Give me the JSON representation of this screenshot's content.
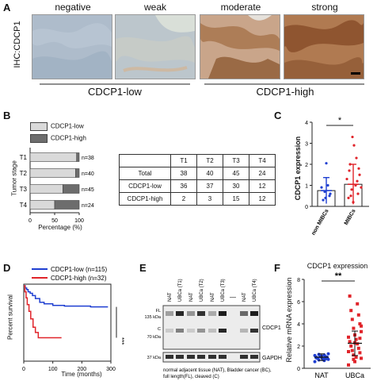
{
  "panel_a": {
    "letter": "A",
    "columns": [
      "negative",
      "weak",
      "moderate",
      "strong"
    ],
    "ylabel": "IHC:CDCP1",
    "groups": [
      "CDCP1-low",
      "CDCP1-high"
    ],
    "colors": {
      "negative": "#a9b9c9",
      "weak": "#b9c4cb",
      "moderate": "#b88d6a",
      "strong": "#a5683e"
    }
  },
  "panel_b": {
    "letter": "B",
    "legend": [
      "CDCP1-low",
      "CDCP1-high"
    ],
    "ylabel": "Tumor stage",
    "xlabel": "Percentage (%)",
    "table": {
      "headers": [
        "",
        "T1",
        "T2",
        "T3",
        "T4"
      ],
      "rows": [
        [
          "Total",
          "38",
          "40",
          "45",
          "24"
        ],
        [
          "CDCP1-low",
          "36",
          "37",
          "30",
          "12"
        ],
        [
          "CDCP1-high",
          "2",
          "3",
          "15",
          "12"
        ]
      ]
    }
  },
  "panel_c": {
    "letter": "C",
    "ylabel": "CDCP1 expression",
    "significance": "*",
    "xticks": [
      "non MIBCs",
      "MIBCs"
    ]
  },
  "panel_d": {
    "letter": "D",
    "legend": [
      "CDCP1-low (n=115)",
      "CDCP1-high (n=32)"
    ],
    "ylabel": "Percent survival",
    "xlabel": "Time (months)",
    "significance": "***"
  },
  "panel_e": {
    "letter": "E",
    "lane_labels": [
      "NAT",
      "UBCa (T1)",
      "NAT",
      "UBCa (T2)",
      "NAT",
      "UBCa (T3)",
      "",
      "NAT",
      "UBCa (T4)"
    ],
    "marker_labels": [
      "FL",
      "135 kDa",
      "C",
      "70 kDa",
      "37 kDa"
    ],
    "band_labels": [
      "CDCP1",
      "GAPDH"
    ],
    "caption": [
      "normal adjacent tissue (NAT), Bladder cancer (BC),",
      "full length(FL), cleaved (C)"
    ],
    "dash": "—"
  },
  "panel_f": {
    "letter": "F",
    "title": "CDCP1 expression",
    "ylabel": "Relative mRNA expression",
    "significance": "**",
    "xticks": [
      "NAT",
      "UBCa"
    ]
  },
  "chart_data": [
    {
      "type": "bar",
      "id": "B",
      "stacked": true,
      "orientation": "horizontal",
      "categories": [
        "T1",
        "T2",
        "T3",
        "T4"
      ],
      "series": [
        {
          "name": "CDCP1-low",
          "values": [
            94.7,
            92.5,
            66.7,
            50.0
          ],
          "color": "#d9d9d9"
        },
        {
          "name": "CDCP1-high",
          "values": [
            5.3,
            7.5,
            33.3,
            50.0
          ],
          "color": "#6d6d6d"
        }
      ],
      "n_labels": [
        "n=38",
        "n=40",
        "n=45",
        "n=24"
      ],
      "xlim": [
        0,
        100
      ],
      "xticks": [
        "0",
        "50",
        "100"
      ]
    },
    {
      "type": "bar",
      "id": "C",
      "categories": [
        "non MIBCs",
        "MIBCs"
      ],
      "values": [
        0.75,
        1.05
      ],
      "errors": [
        0.62,
        0.95
      ],
      "ylim": [
        0,
        4
      ],
      "yticks": [
        "0",
        "1",
        "2",
        "3",
        "4"
      ],
      "colors": [
        "#1f3fd1",
        "#e0242a"
      ]
    },
    {
      "type": "line",
      "id": "D",
      "series": [
        {
          "name": "CDCP1-low (n=115)",
          "color": "#1f3fd1",
          "x": [
            0,
            5,
            10,
            15,
            22,
            30,
            40,
            55,
            70,
            100,
            140,
            200,
            230,
            290
          ],
          "y": [
            100,
            97,
            95,
            92,
            90,
            87,
            83,
            78,
            76,
            74,
            73,
            73,
            72,
            72
          ]
        },
        {
          "name": "CDCP1-high (n=32)",
          "color": "#e0242a",
          "x": [
            0,
            4,
            8,
            12,
            18,
            24,
            32,
            40,
            50,
            130
          ],
          "y": [
            100,
            92,
            84,
            75,
            66,
            56,
            45,
            38,
            31,
            31
          ]
        }
      ],
      "xlim": [
        0,
        300
      ],
      "ylim": [
        0,
        100
      ],
      "xticks": [
        "0",
        "100",
        "200",
        "300"
      ]
    },
    {
      "type": "scatter",
      "id": "F",
      "categories": [
        "NAT",
        "UBCa"
      ],
      "means": [
        1.0,
        2.25
      ],
      "errors": [
        0.3,
        1.1
      ],
      "ylim": [
        0,
        8
      ],
      "yticks": [
        "0",
        "2",
        "4",
        "6",
        "8"
      ],
      "colors": [
        "#1f3fd1",
        "#e0242a"
      ]
    }
  ]
}
